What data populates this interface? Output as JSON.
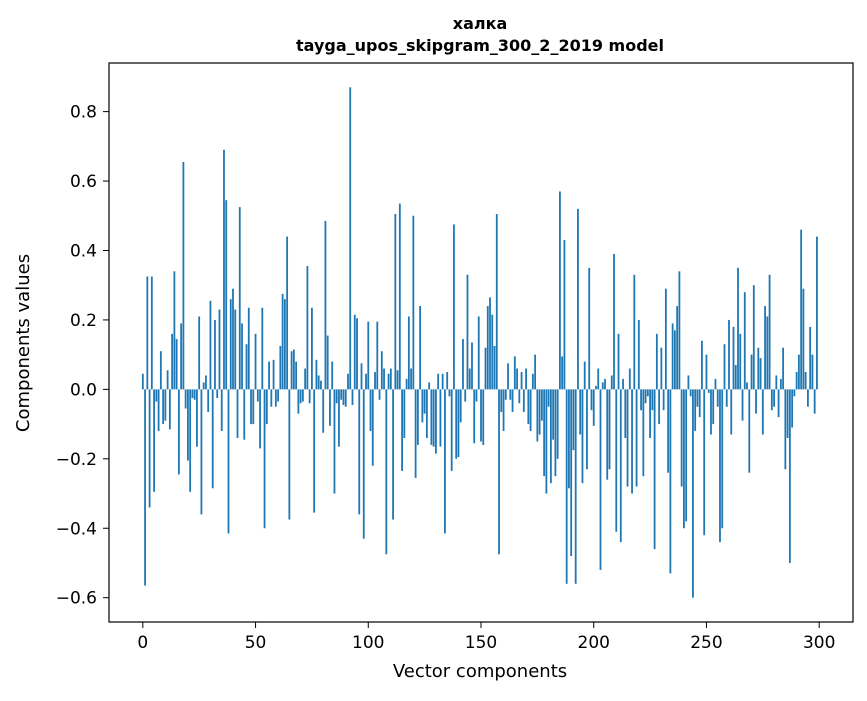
{
  "chart_data": {
    "type": "bar",
    "title": "халка",
    "subtitle": "tayga_upos_skipgram_300_2_2019 model",
    "xlabel": "Vector components",
    "ylabel": "Components values",
    "xlim": [
      -15,
      315
    ],
    "ylim": [
      -0.67,
      0.94
    ],
    "xticks": [
      0,
      50,
      100,
      150,
      200,
      250,
      300
    ],
    "xtick_labels": [
      "0",
      "50",
      "100",
      "150",
      "200",
      "250",
      "300"
    ],
    "yticks": [
      -0.6,
      -0.4,
      -0.2,
      0.0,
      0.2,
      0.4,
      0.6,
      0.8
    ],
    "ytick_labels": [
      "−0.6",
      "−0.4",
      "−0.2",
      "0.0",
      "0.2",
      "0.4",
      "0.6",
      "0.8"
    ],
    "grid": false,
    "bar_color": "#1f77b4",
    "values": [
      0.045,
      -0.565,
      0.325,
      -0.34,
      0.325,
      -0.295,
      -0.035,
      -0.12,
      0.11,
      -0.1,
      -0.09,
      0.055,
      -0.115,
      0.16,
      0.34,
      0.145,
      -0.245,
      0.19,
      0.655,
      -0.055,
      -0.205,
      -0.295,
      -0.025,
      -0.03,
      -0.165,
      0.21,
      -0.36,
      0.02,
      0.04,
      -0.065,
      0.255,
      -0.285,
      0.2,
      -0.025,
      0.23,
      -0.12,
      0.69,
      0.545,
      -0.415,
      0.26,
      0.29,
      0.23,
      -0.14,
      0.525,
      0.19,
      -0.145,
      0.13,
      0.235,
      -0.1,
      -0.1,
      0.16,
      -0.035,
      -0.17,
      0.235,
      -0.4,
      -0.1,
      0.08,
      -0.05,
      0.085,
      -0.05,
      -0.035,
      0.125,
      0.275,
      0.26,
      0.44,
      -0.375,
      0.11,
      0.115,
      0.08,
      -0.07,
      -0.04,
      -0.035,
      0.06,
      0.355,
      -0.04,
      0.235,
      -0.355,
      0.085,
      0.04,
      0.025,
      -0.125,
      0.485,
      0.155,
      -0.105,
      0.08,
      -0.3,
      -0.04,
      -0.165,
      -0.03,
      -0.045,
      -0.05,
      0.045,
      0.87,
      -0.045,
      0.215,
      0.205,
      -0.36,
      0.075,
      -0.43,
      0.045,
      0.195,
      -0.12,
      -0.22,
      0.05,
      0.195,
      -0.03,
      0.11,
      0.06,
      -0.475,
      0.045,
      0.06,
      -0.375,
      0.505,
      0.055,
      0.535,
      -0.235,
      -0.14,
      0.03,
      0.21,
      0.06,
      0.5,
      -0.255,
      -0.16,
      0.24,
      -0.095,
      -0.07,
      -0.14,
      0.02,
      -0.16,
      -0.165,
      -0.185,
      0.045,
      -0.165,
      0.045,
      -0.415,
      0.05,
      -0.02,
      -0.235,
      0.475,
      -0.2,
      -0.195,
      -0.095,
      0.145,
      -0.035,
      0.33,
      0.06,
      0.135,
      -0.155,
      -0.035,
      0.21,
      -0.15,
      -0.16,
      0.12,
      0.24,
      0.265,
      0.215,
      0.125,
      0.505,
      -0.475,
      -0.065,
      -0.12,
      -0.03,
      0.075,
      -0.03,
      -0.065,
      0.095,
      0.06,
      -0.04,
      0.05,
      -0.065,
      0.06,
      -0.1,
      -0.12,
      0.045,
      0.1,
      -0.15,
      -0.13,
      -0.09,
      -0.25,
      -0.3,
      -0.05,
      -0.27,
      -0.145,
      -0.25,
      -0.2,
      0.57,
      0.095,
      0.43,
      -0.56,
      -0.285,
      -0.48,
      -0.175,
      -0.56,
      0.52,
      -0.13,
      -0.27,
      0.08,
      -0.23,
      0.35,
      -0.06,
      -0.105,
      0.01,
      0.06,
      -0.52,
      0.02,
      0.03,
      -0.26,
      -0.23,
      0.04,
      0.39,
      -0.41,
      0.16,
      -0.44,
      0.03,
      -0.14,
      -0.28,
      0.06,
      -0.3,
      0.33,
      -0.28,
      0.2,
      -0.06,
      -0.25,
      -0.04,
      -0.02,
      -0.14,
      -0.06,
      -0.46,
      0.16,
      -0.1,
      0.12,
      -0.06,
      0.29,
      -0.24,
      -0.53,
      0.19,
      0.17,
      0.24,
      0.34,
      -0.28,
      -0.4,
      -0.38,
      0.04,
      -0.02,
      -0.6,
      -0.12,
      -0.05,
      -0.08,
      0.14,
      -0.42,
      0.1,
      -0.01,
      -0.13,
      -0.1,
      0.03,
      -0.05,
      -0.44,
      -0.4,
      0.13,
      -0.05,
      0.2,
      -0.13,
      0.18,
      0.07,
      0.35,
      0.16,
      -0.09,
      0.28,
      0.02,
      -0.24,
      0.1,
      0.3,
      -0.07,
      0.12,
      0.09,
      -0.13,
      0.24,
      0.21,
      0.33,
      -0.06,
      -0.05,
      0.04,
      -0.08,
      0.03,
      0.12,
      -0.23,
      -0.14,
      -0.5,
      -0.11,
      -0.02,
      0.05,
      0.1,
      0.46,
      0.29,
      0.05,
      -0.05,
      0.18,
      0.1,
      -0.07,
      0.44
    ]
  }
}
